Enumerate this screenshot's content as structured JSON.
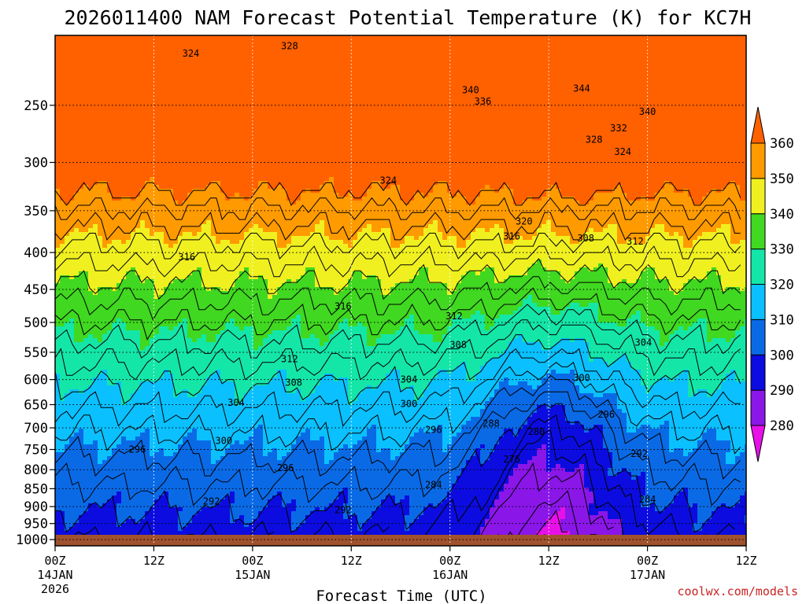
{
  "chart_data": {
    "type": "heatmap",
    "title": "2026011400 NAM Forecast Potential Temperature (K) for KC7H",
    "xlabel": "Forecast Time (UTC)",
    "ylabel": "",
    "credit": "coolwx.com/models",
    "units": "K",
    "x_ticks": [
      {
        "hours": 0,
        "line1": "00Z",
        "line2": "14JAN",
        "line3": "2026"
      },
      {
        "hours": 12,
        "line1": "12Z",
        "line2": "",
        "line3": ""
      },
      {
        "hours": 24,
        "line1": "00Z",
        "line2": "15JAN",
        "line3": ""
      },
      {
        "hours": 36,
        "line1": "12Z",
        "line2": "",
        "line3": ""
      },
      {
        "hours": 48,
        "line1": "00Z",
        "line2": "16JAN",
        "line3": ""
      },
      {
        "hours": 60,
        "line1": "12Z",
        "line2": "",
        "line3": ""
      },
      {
        "hours": 72,
        "line1": "00Z",
        "line2": "17JAN",
        "line3": ""
      },
      {
        "hours": 84,
        "line1": "12Z",
        "line2": "",
        "line3": ""
      }
    ],
    "xlim": [
      0,
      84
    ],
    "y_ticks": [
      250,
      300,
      350,
      400,
      450,
      500,
      550,
      600,
      650,
      700,
      750,
      800,
      850,
      900,
      950,
      1000
    ],
    "ylim": [
      1020,
      200
    ],
    "y_scale": "log",
    "grid": true,
    "colorbar": {
      "levels": [
        280,
        290,
        300,
        310,
        320,
        330,
        340,
        350,
        360
      ],
      "colors": [
        "#e810e8",
        "#8a16e8",
        "#0c0ce0",
        "#0a6ae6",
        "#0ac0ff",
        "#14e6a8",
        "#40d820",
        "#f0f020",
        "#ff9a00",
        "#ff6000"
      ]
    },
    "contour_labels": [
      {
        "value": "324",
        "hours": 16.5,
        "p": 212
      },
      {
        "value": "328",
        "hours": 28.5,
        "p": 207
      },
      {
        "value": "340",
        "hours": 50.5,
        "p": 238
      },
      {
        "value": "336",
        "hours": 52.0,
        "p": 247
      },
      {
        "value": "344",
        "hours": 64.0,
        "p": 237
      },
      {
        "value": "340",
        "hours": 72.0,
        "p": 255
      },
      {
        "value": "332",
        "hours": 68.5,
        "p": 269
      },
      {
        "value": "328",
        "hours": 65.5,
        "p": 279
      },
      {
        "value": "324",
        "hours": 69.0,
        "p": 290
      },
      {
        "value": "324",
        "hours": 40.5,
        "p": 318
      },
      {
        "value": "320",
        "hours": 57.0,
        "p": 362
      },
      {
        "value": "316",
        "hours": 55.5,
        "p": 380
      },
      {
        "value": "308",
        "hours": 64.5,
        "p": 382
      },
      {
        "value": "312",
        "hours": 70.5,
        "p": 386
      },
      {
        "value": "316",
        "hours": 16.0,
        "p": 406
      },
      {
        "value": "316",
        "hours": 35.0,
        "p": 475
      },
      {
        "value": "312",
        "hours": 48.5,
        "p": 490
      },
      {
        "value": "308",
        "hours": 49.0,
        "p": 537
      },
      {
        "value": "312",
        "hours": 28.5,
        "p": 562
      },
      {
        "value": "304",
        "hours": 71.5,
        "p": 533
      },
      {
        "value": "300",
        "hours": 64.0,
        "p": 597
      },
      {
        "value": "308",
        "hours": 29.0,
        "p": 606
      },
      {
        "value": "304",
        "hours": 43.0,
        "p": 600
      },
      {
        "value": "304",
        "hours": 22.0,
        "p": 646
      },
      {
        "value": "300",
        "hours": 43.0,
        "p": 648
      },
      {
        "value": "296",
        "hours": 67.0,
        "p": 671
      },
      {
        "value": "288",
        "hours": 53.0,
        "p": 690
      },
      {
        "value": "296",
        "hours": 46.0,
        "p": 704
      },
      {
        "value": "280",
        "hours": 58.5,
        "p": 709
      },
      {
        "value": "300",
        "hours": 20.5,
        "p": 730
      },
      {
        "value": "296",
        "hours": 10.0,
        "p": 750
      },
      {
        "value": "276",
        "hours": 55.5,
        "p": 774
      },
      {
        "value": "292",
        "hours": 71.0,
        "p": 760
      },
      {
        "value": "296",
        "hours": 28.0,
        "p": 796
      },
      {
        "value": "284",
        "hours": 46.0,
        "p": 840
      },
      {
        "value": "292",
        "hours": 19.0,
        "p": 885
      },
      {
        "value": "284",
        "hours": 72.0,
        "p": 880
      },
      {
        "value": "292",
        "hours": 35.0,
        "p": 910
      }
    ]
  }
}
